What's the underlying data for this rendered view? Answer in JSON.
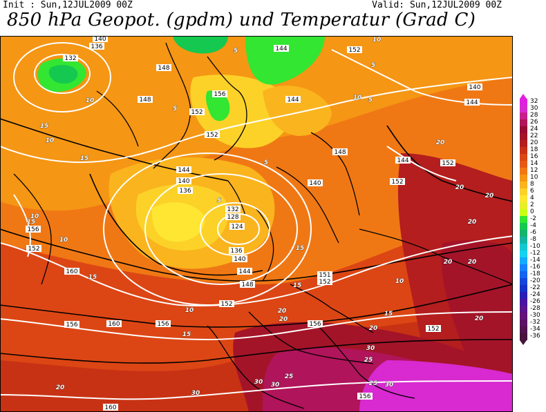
{
  "header": {
    "init": "Init : Sun,12JUL2009 00Z",
    "valid": "Valid: Sun,12JUL2009 00Z",
    "title": "850 hPa Geopot. (gpdm) und Temperatur (Grad C)"
  },
  "legend": {
    "items": [
      {
        "label": "32",
        "color": "#e020e0"
      },
      {
        "label": "30",
        "color": "#d82ad0"
      },
      {
        "label": "28",
        "color": "#c81e8c"
      },
      {
        "label": "26",
        "color": "#b0145a"
      },
      {
        "label": "24",
        "color": "#960c32"
      },
      {
        "label": "22",
        "color": "#a41428"
      },
      {
        "label": "20",
        "color": "#b41e1e"
      },
      {
        "label": "18",
        "color": "#c83214"
      },
      {
        "label": "16",
        "color": "#dc4614"
      },
      {
        "label": "14",
        "color": "#e65a14"
      },
      {
        "label": "12",
        "color": "#f07814"
      },
      {
        "label": "10",
        "color": "#f59614"
      },
      {
        "label": "8",
        "color": "#fab41e"
      },
      {
        "label": "6",
        "color": "#fcd228"
      },
      {
        "label": "4",
        "color": "#ffe632"
      },
      {
        "label": "2",
        "color": "#e6f028"
      },
      {
        "label": "0",
        "color": "#c8ff14"
      },
      {
        "label": "-2",
        "color": "#32e632"
      },
      {
        "label": "-4",
        "color": "#14c850"
      },
      {
        "label": "-6",
        "color": "#14b46e"
      },
      {
        "label": "-8",
        "color": "#14b4a0"
      },
      {
        "label": "-10",
        "color": "#14c8d2"
      },
      {
        "label": "-12",
        "color": "#14d2f0"
      },
      {
        "label": "-14",
        "color": "#14aaff"
      },
      {
        "label": "-16",
        "color": "#1482ff"
      },
      {
        "label": "-18",
        "color": "#1464f0"
      },
      {
        "label": "-20",
        "color": "#1446dc"
      },
      {
        "label": "-22",
        "color": "#1432c8"
      },
      {
        "label": "-24",
        "color": "#281eb4"
      },
      {
        "label": "-26",
        "color": "#4614a0"
      },
      {
        "label": "-28",
        "color": "#5a148c"
      },
      {
        "label": "-30",
        "color": "#641478"
      },
      {
        "label": "-32",
        "color": "#5a1464"
      },
      {
        "label": "-34",
        "color": "#501450"
      },
      {
        "label": "-36",
        "color": "#46143c"
      }
    ]
  },
  "map": {
    "geopotential_labels": [
      "140",
      "136",
      "132",
      "148",
      "156",
      "152",
      "144",
      "144",
      "152",
      "140",
      "144",
      "148",
      "152",
      "144",
      "140",
      "136",
      "132",
      "128",
      "124",
      "136",
      "140",
      "144",
      "148",
      "152",
      "160",
      "156",
      "152",
      "148",
      "144",
      "152",
      "140",
      "152",
      "156",
      "152",
      "151",
      "152",
      "160",
      "156",
      "156",
      "156",
      "160"
    ],
    "temperature_labels": [
      "10",
      "5",
      "5",
      "10",
      "10",
      "15",
      "10",
      "5",
      "15",
      "5",
      "5",
      "5",
      "10",
      "10",
      "15",
      "15",
      "20",
      "20",
      "20",
      "20",
      "20",
      "10",
      "15",
      "15",
      "10",
      "20",
      "15",
      "15",
      "25",
      "20",
      "20",
      "25",
      "30",
      "30",
      "30",
      "30",
      "30",
      "20",
      "20",
      "25",
      "20"
    ]
  }
}
